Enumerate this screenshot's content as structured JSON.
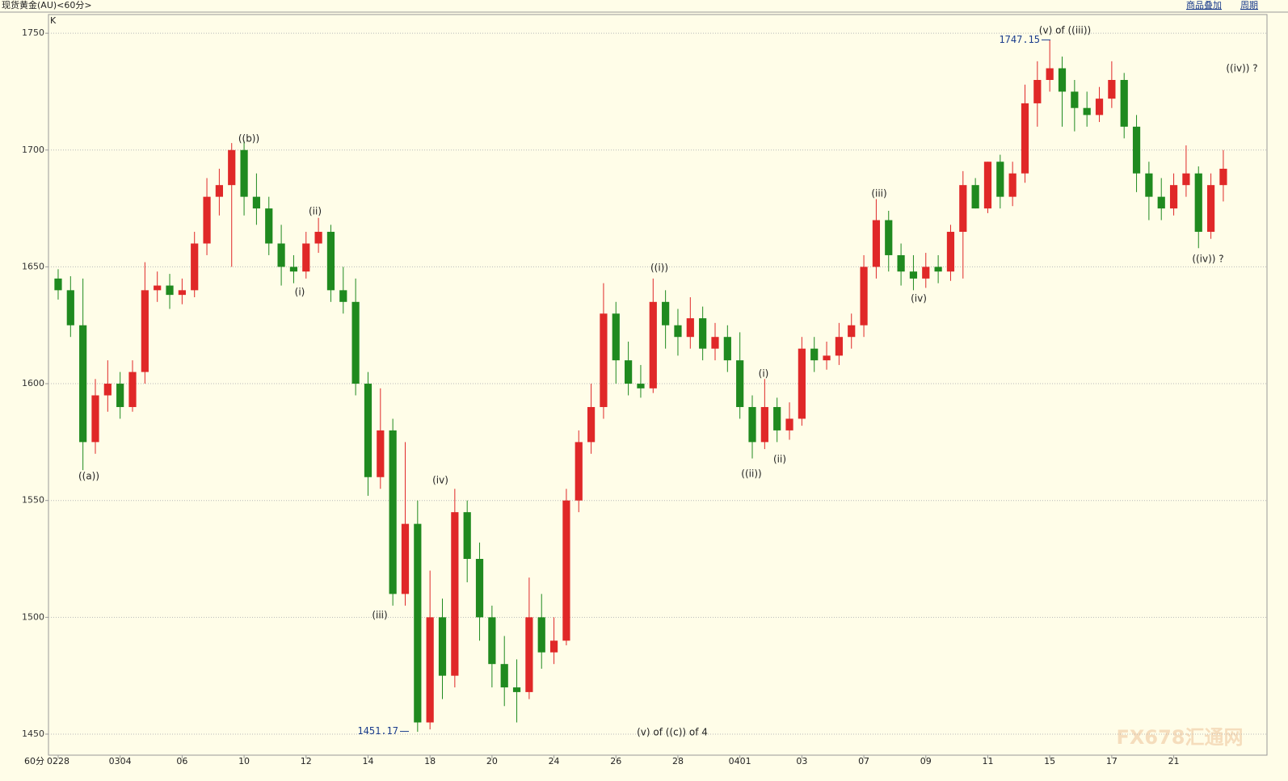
{
  "header": {
    "title": "现货黄金(AU)<60分>",
    "links": [
      "商品叠加",
      "周期"
    ]
  },
  "chart_data": {
    "type": "candlestick",
    "indicator": "K",
    "period": "60分",
    "categories": [
      "0228",
      null,
      null,
      null,
      null,
      "0304",
      null,
      null,
      null,
      null,
      "06",
      null,
      null,
      null,
      null,
      "10",
      null,
      null,
      null,
      null,
      "12",
      null,
      null,
      null,
      null,
      "14",
      null,
      null,
      null,
      null,
      "18",
      null,
      null,
      null,
      null,
      "20",
      null,
      null,
      null,
      null,
      "24",
      null,
      null,
      null,
      null,
      "26",
      null,
      null,
      null,
      null,
      "28",
      null,
      null,
      null,
      null,
      "0401",
      null,
      null,
      null,
      null,
      "03",
      null,
      null,
      null,
      null,
      "07",
      null,
      null,
      null,
      null,
      "09",
      null,
      null,
      null,
      null,
      "11",
      null,
      null,
      null,
      null,
      "15",
      null,
      null,
      null,
      null,
      "17",
      null,
      null,
      null,
      null,
      "21",
      null,
      null,
      null,
      null
    ],
    "open": [
      1645,
      1640,
      1625,
      1575,
      1595,
      1600,
      1590,
      1605,
      1640,
      1642,
      1638,
      1640,
      1660,
      1680,
      1685,
      1700,
      1680,
      1675,
      1660,
      1650,
      1648,
      1660,
      1665,
      1640,
      1635,
      1600,
      1560,
      1580,
      1510,
      1540,
      1455,
      1500,
      1475,
      1545,
      1525,
      1500,
      1480,
      1470,
      1468,
      1500,
      1485,
      1490,
      1550,
      1575,
      1590,
      1630,
      1610,
      1600,
      1598,
      1635,
      1625,
      1620,
      1628,
      1615,
      1620,
      1610,
      1590,
      1575,
      1590,
      1580,
      1585,
      1615,
      1610,
      1612,
      1620,
      1625,
      1650,
      1670,
      1655,
      1648,
      1645,
      1650,
      1648,
      1665,
      1685,
      1675,
      1695,
      1680,
      1690,
      1720,
      1730,
      1735,
      1725,
      1718,
      1715,
      1722,
      1730,
      1710,
      1690,
      1680,
      1675,
      1685,
      1690,
      1665,
      1685
    ],
    "high": [
      1649,
      1646,
      1645,
      1602,
      1610,
      1605,
      1610,
      1652,
      1648,
      1647,
      1645,
      1665,
      1688,
      1692,
      1703,
      1704,
      1690,
      1680,
      1668,
      1655,
      1665,
      1671,
      1668,
      1650,
      1645,
      1605,
      1598,
      1585,
      1575,
      1550,
      1520,
      1508,
      1555,
      1550,
      1532,
      1505,
      1492,
      1482,
      1517,
      1510,
      1500,
      1555,
      1580,
      1600,
      1643,
      1635,
      1618,
      1608,
      1645,
      1640,
      1632,
      1637,
      1633,
      1626,
      1625,
      1622,
      1595,
      1602,
      1594,
      1592,
      1620,
      1620,
      1618,
      1626,
      1630,
      1655,
      1679,
      1674,
      1660,
      1655,
      1656,
      1655,
      1668,
      1691,
      1688,
      1695,
      1698,
      1695,
      1728,
      1738,
      1747,
      1740,
      1730,
      1725,
      1727,
      1738,
      1733,
      1715,
      1695,
      1688,
      1690,
      1702,
      1693,
      1690,
      1700
    ],
    "low": [
      1636,
      1620,
      1563,
      1570,
      1588,
      1585,
      1588,
      1600,
      1635,
      1632,
      1634,
      1637,
      1655,
      1672,
      1650,
      1672,
      1668,
      1655,
      1642,
      1643,
      1645,
      1656,
      1635,
      1630,
      1595,
      1552,
      1555,
      1505,
      1505,
      1451,
      1452,
      1465,
      1470,
      1515,
      1490,
      1470,
      1462,
      1455,
      1465,
      1478,
      1480,
      1488,
      1545,
      1570,
      1585,
      1600,
      1595,
      1594,
      1596,
      1615,
      1612,
      1615,
      1610,
      1610,
      1605,
      1585,
      1568,
      1572,
      1575,
      1576,
      1582,
      1605,
      1606,
      1608,
      1615,
      1620,
      1645,
      1648,
      1642,
      1640,
      1641,
      1643,
      1644,
      1645,
      1675,
      1673,
      1675,
      1676,
      1686,
      1710,
      1725,
      1710,
      1708,
      1710,
      1712,
      1718,
      1705,
      1682,
      1670,
      1670,
      1672,
      1680,
      1658,
      1662,
      1678
    ],
    "close": [
      1640,
      1625,
      1575,
      1595,
      1600,
      1590,
      1605,
      1640,
      1642,
      1638,
      1640,
      1660,
      1680,
      1685,
      1700,
      1680,
      1675,
      1660,
      1650,
      1648,
      1660,
      1665,
      1640,
      1635,
      1600,
      1560,
      1580,
      1510,
      1540,
      1455,
      1500,
      1475,
      1545,
      1525,
      1500,
      1480,
      1470,
      1468,
      1500,
      1485,
      1490,
      1550,
      1575,
      1590,
      1630,
      1610,
      1600,
      1598,
      1635,
      1625,
      1620,
      1628,
      1615,
      1620,
      1610,
      1590,
      1575,
      1590,
      1580,
      1585,
      1615,
      1610,
      1612,
      1620,
      1625,
      1650,
      1670,
      1655,
      1648,
      1645,
      1650,
      1648,
      1665,
      1685,
      1675,
      1695,
      1680,
      1690,
      1720,
      1730,
      1735,
      1725,
      1718,
      1715,
      1722,
      1730,
      1710,
      1690,
      1680,
      1675,
      1685,
      1690,
      1665,
      1685,
      1692
    ],
    "up_color": "#e02828",
    "down_color": "#1f8a1f",
    "ylim": [
      1441,
      1758
    ],
    "yticks": [
      1450,
      1500,
      1550,
      1600,
      1650,
      1700,
      1750
    ],
    "grid": true,
    "high_marker": 1747.15,
    "low_marker": 1451.17,
    "annotations": [
      "((a))",
      "((b))",
      "(i)",
      "(ii)",
      "(iii)",
      "(iv)",
      "(v) of ((c)) of 4",
      "((i))",
      "((ii))",
      "(i)",
      "(ii)",
      "(iii)",
      "(iv)",
      "(v) of ((iii))",
      "((iv)) ?",
      "((iv)) ?"
    ],
    "watermark": "FX678汇通网"
  }
}
